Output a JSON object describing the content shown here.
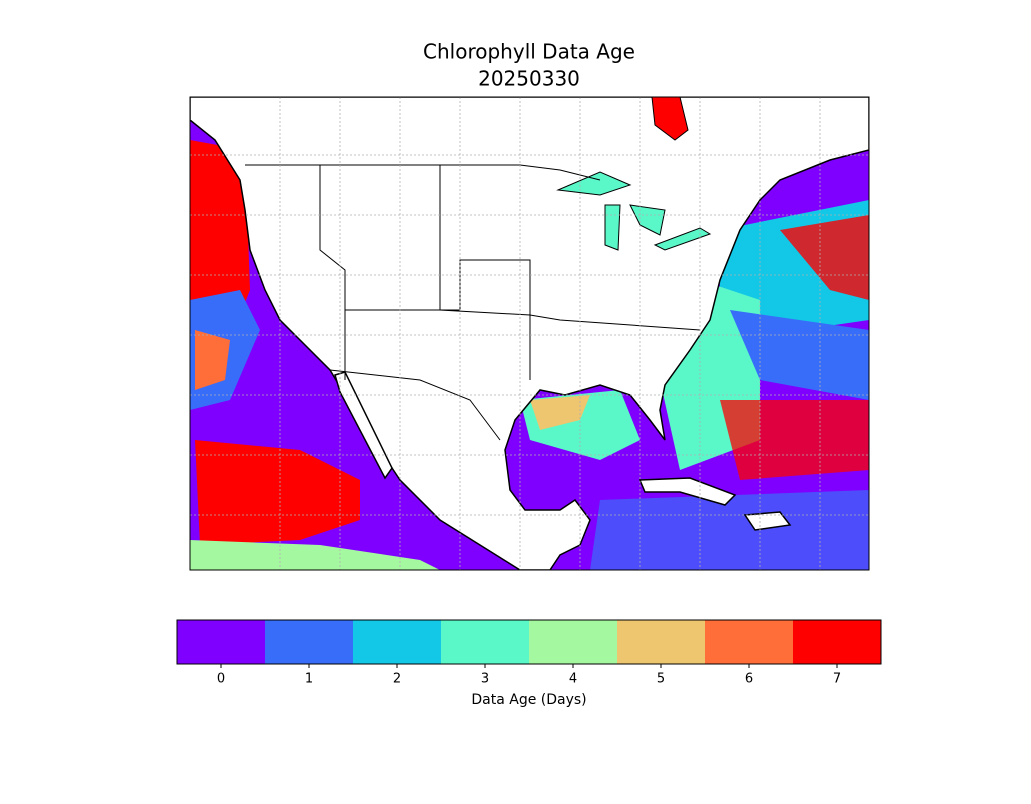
{
  "title": "Chlorophyll Data Age",
  "subtitle": "20250330",
  "colorbar": {
    "label": "Data Age (Days)",
    "ticks": [
      0,
      1,
      2,
      3,
      4,
      5,
      6,
      7
    ],
    "colors": [
      "#7f00ff",
      "#386df9",
      "#12c8e6",
      "#5af8c8",
      "#a4f89f",
      "#edc66f",
      "#ff6d38",
      "#ff0000"
    ]
  }
}
